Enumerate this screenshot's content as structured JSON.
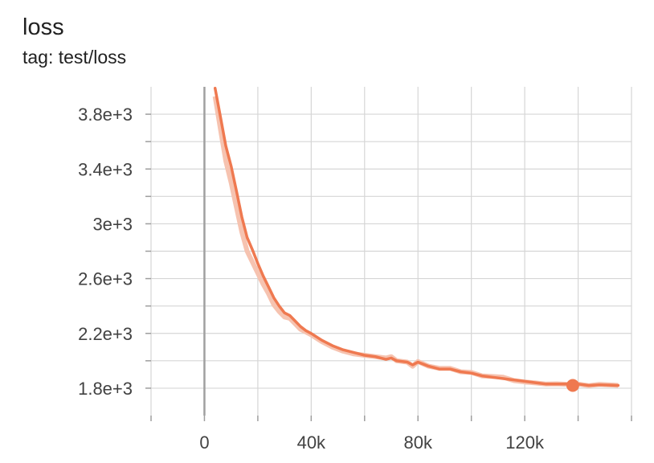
{
  "card": {
    "title": "loss",
    "subtitle": "tag: test/loss"
  },
  "colors": {
    "series": "#ef7950",
    "series_raw": "#f6c3b0",
    "grid": "#d6d6d6",
    "zero_axis": "#a0a0a0"
  },
  "chart_data": {
    "type": "line",
    "title": "loss",
    "subtitle": "tag: test/loss",
    "xlabel": "",
    "ylabel": "",
    "xlim": [
      -20000,
      160000
    ],
    "ylim": [
      1600,
      4000
    ],
    "grid": true,
    "x_ticks": [
      {
        "value": 0,
        "label": "0"
      },
      {
        "value": 40000,
        "label": "40k"
      },
      {
        "value": 80000,
        "label": "80k"
      },
      {
        "value": 120000,
        "label": "120k"
      }
    ],
    "y_ticks": [
      {
        "value": 1800,
        "label": "1.8e+3"
      },
      {
        "value": 2200,
        "label": "2.2e+3"
      },
      {
        "value": 2600,
        "label": "2.6e+3"
      },
      {
        "value": 3000,
        "label": "3e+3"
      },
      {
        "value": 3400,
        "label": "3.4e+3"
      },
      {
        "value": 3800,
        "label": "3.8e+3"
      }
    ],
    "minor_x_ticks": [
      -20000,
      20000,
      60000,
      100000,
      140000,
      160000
    ],
    "minor_y_ticks": [
      2000,
      2400,
      2800,
      3200,
      3600
    ],
    "series": [
      {
        "role": "smoothed",
        "x": [
          4000,
          6000,
          8000,
          10000,
          12000,
          14000,
          16000,
          18000,
          20000,
          22000,
          24000,
          26000,
          28000,
          30000,
          32000,
          34000,
          36000,
          38000,
          40000,
          44000,
          48000,
          52000,
          56000,
          60000,
          64000,
          68000,
          70000,
          72000,
          76000,
          78000,
          80000,
          84000,
          88000,
          92000,
          96000,
          100000,
          104000,
          108000,
          112000,
          116000,
          120000,
          124000,
          128000,
          132000,
          136000,
          140000,
          144000,
          148000,
          155000
        ],
        "y": [
          3990,
          3780,
          3570,
          3420,
          3240,
          3050,
          2900,
          2810,
          2710,
          2620,
          2540,
          2460,
          2400,
          2350,
          2330,
          2290,
          2250,
          2220,
          2200,
          2150,
          2110,
          2080,
          2060,
          2040,
          2030,
          2010,
          2020,
          2000,
          1990,
          1970,
          1990,
          1960,
          1940,
          1940,
          1920,
          1910,
          1890,
          1880,
          1870,
          1860,
          1850,
          1840,
          1830,
          1830,
          1830,
          1830,
          1820,
          1825,
          1820
        ]
      },
      {
        "role": "raw",
        "x": [
          4000,
          6000,
          8000,
          10000,
          12000,
          14000,
          16000,
          18000,
          20000,
          22000,
          24000,
          26000,
          28000,
          30000,
          32000,
          34000,
          36000,
          38000,
          40000,
          44000,
          48000,
          52000,
          56000,
          60000,
          64000,
          68000,
          70000,
          72000,
          76000,
          78000,
          80000,
          84000,
          88000,
          92000,
          96000,
          100000,
          104000,
          108000,
          112000,
          116000,
          120000,
          124000,
          128000,
          132000,
          136000,
          140000,
          144000,
          148000,
          155000
        ],
        "y": [
          3930,
          3690,
          3460,
          3300,
          3120,
          2940,
          2800,
          2720,
          2640,
          2560,
          2490,
          2410,
          2360,
          2320,
          2310,
          2270,
          2230,
          2210,
          2190,
          2140,
          2100,
          2070,
          2050,
          2040,
          2030,
          2020,
          2030,
          2000,
          1990,
          1960,
          1995,
          1960,
          1945,
          1945,
          1920,
          1915,
          1890,
          1885,
          1880,
          1855,
          1845,
          1838,
          1830,
          1832,
          1828,
          1830,
          1818,
          1828,
          1820
        ]
      }
    ],
    "highlight_point": {
      "x": 138000,
      "y": 1820
    }
  }
}
